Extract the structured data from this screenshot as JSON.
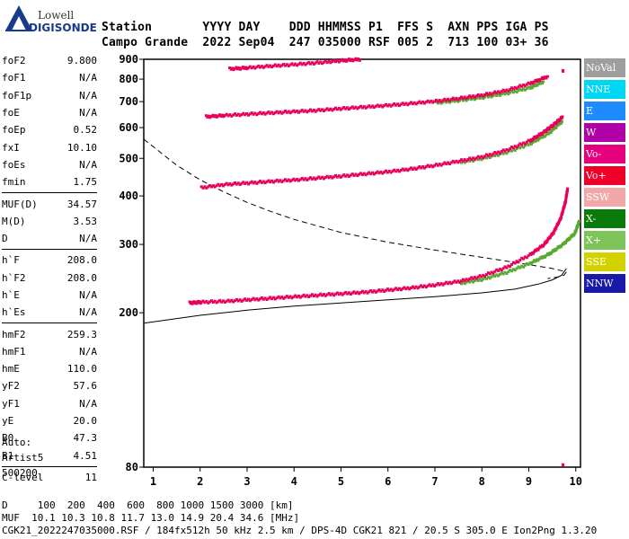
{
  "logo": {
    "line1": "Lowell",
    "line2": "DIGISONDE"
  },
  "header": {
    "row1": "Station       YYYY DAY    DDD HHMMSS P1  FFS S  AXN PPS IGA PS",
    "row2": "Campo Grande  2022 Sep04  247 035000 RSF 005 2  713 100 03+ 36"
  },
  "params": [
    {
      "name": "foF2",
      "value": "9.800"
    },
    {
      "name": "foF1",
      "value": "N/A"
    },
    {
      "name": "foF1p",
      "value": "N/A"
    },
    {
      "name": "foE",
      "value": "N/A"
    },
    {
      "name": "foEp",
      "value": "0.52"
    },
    {
      "name": "fxI",
      "value": "10.10"
    },
    {
      "name": "foEs",
      "value": "N/A"
    },
    {
      "name": "fmin",
      "value": "1.75"
    },
    {
      "sep": true
    },
    {
      "name": "MUF(D)",
      "value": "34.57"
    },
    {
      "name": "M(D)",
      "value": "3.53"
    },
    {
      "name": "D",
      "value": "N/A"
    },
    {
      "sep": true
    },
    {
      "name": "h`F",
      "value": "208.0"
    },
    {
      "name": "h`F2",
      "value": "208.0"
    },
    {
      "name": "h`E",
      "value": "N/A"
    },
    {
      "name": "h`Es",
      "value": "N/A"
    },
    {
      "sep": true
    },
    {
      "name": "hmF2",
      "value": "259.3"
    },
    {
      "name": "hmF1",
      "value": "N/A"
    },
    {
      "name": "hmE",
      "value": "110.0"
    },
    {
      "name": "yF2",
      "value": "57.6"
    },
    {
      "name": "yF1",
      "value": "N/A"
    },
    {
      "name": "yE",
      "value": "20.0"
    },
    {
      "name": "B0",
      "value": "47.3"
    },
    {
      "name": "B1",
      "value": "4.51"
    },
    {
      "sep": true
    },
    {
      "name": "C-level",
      "value": "11"
    }
  ],
  "auto": {
    "l1": "Auto:",
    "l2": "Artist5",
    "l3": "500200"
  },
  "legend": [
    {
      "label": "NoVal",
      "color": "#9e9e9e"
    },
    {
      "label": "NNE",
      "color": "#00d7f5"
    },
    {
      "label": "E",
      "color": "#1e8cff"
    },
    {
      "label": "W",
      "color": "#b000a8"
    },
    {
      "label": "Vo-",
      "color": "#e6007e"
    },
    {
      "label": "Vo+",
      "color": "#f00028"
    },
    {
      "label": "SSW",
      "color": "#f2a8a8"
    },
    {
      "label": "X-",
      "color": "#0a7a0a"
    },
    {
      "label": "X+",
      "color": "#7ec45a"
    },
    {
      "label": "SSE",
      "color": "#d2d200"
    },
    {
      "label": "NNW",
      "color": "#1a1aa8"
    }
  ],
  "bottom": {
    "l1": "D     100  200  400  600  800 1000 1500 3000 [km]",
    "l2": "MUF  10.1 10.3 10.8 11.7 13.0 14.9 20.4 34.6 [MHz]",
    "l3": "CGK21_2022247035000.RSF / 184fx512h 50 kHz 2.5 km / DPS-4D CGK21 821 / 20.5 S 305.0 E Ion2Png 1.3.20"
  },
  "chart_data": {
    "type": "scatter",
    "xlim": [
      0.8,
      10.1
    ],
    "ylim": [
      80,
      900
    ],
    "yscale": "log",
    "xticks": [
      1,
      2,
      3,
      4,
      5,
      6,
      7,
      8,
      9,
      10
    ],
    "yticks": [
      80,
      200,
      300,
      400,
      500,
      600,
      700,
      800,
      900
    ],
    "grid": false,
    "trace_color": "#e8005a",
    "xtrace_color": "#5aa832",
    "traces": [
      {
        "name": "F2 1st hop O",
        "x": [
          1.75,
          2.0,
          2.5,
          3.0,
          3.5,
          4.0,
          4.5,
          5.0,
          5.5,
          6.0,
          6.5,
          7.0,
          7.5,
          8.0,
          8.5,
          9.0,
          9.3,
          9.5,
          9.65,
          9.75,
          9.8
        ],
        "y": [
          212,
          213,
          214,
          216,
          218,
          220,
          222,
          224,
          226,
          229,
          232,
          236,
          241,
          249,
          262,
          282,
          300,
          322,
          350,
          385,
          420
        ]
      },
      {
        "name": "F2 2nd hop O",
        "x": [
          2.0,
          2.5,
          3.0,
          3.5,
          4.0,
          4.5,
          5.0,
          5.5,
          6.0,
          6.5,
          7.0,
          7.5,
          8.0,
          8.5,
          9.0,
          9.3,
          9.5,
          9.7
        ],
        "y": [
          420,
          428,
          432,
          436,
          440,
          445,
          450,
          456,
          462,
          470,
          480,
          492,
          505,
          525,
          555,
          585,
          610,
          640
        ]
      },
      {
        "name": "F2 3rd hop O",
        "x": [
          2.1,
          2.5,
          3.0,
          3.5,
          4.0,
          4.5,
          5.0,
          5.5,
          6.0,
          6.5,
          7.0,
          7.5,
          8.0,
          8.5,
          9.0,
          9.4
        ],
        "y": [
          640,
          645,
          650,
          655,
          660,
          665,
          672,
          678,
          685,
          693,
          702,
          714,
          728,
          748,
          780,
          815
        ]
      },
      {
        "name": "F2 4th hop O",
        "x": [
          2.6,
          3.0,
          3.5,
          4.0,
          4.5,
          5.0,
          5.4
        ],
        "y": [
          850,
          856,
          865,
          873,
          882,
          893,
          900
        ]
      }
    ],
    "x_traces": [
      {
        "name": "F2 1st hop X",
        "x": [
          7.5,
          8.0,
          8.5,
          9.0,
          9.4,
          9.7,
          9.95,
          10.05
        ],
        "y": [
          238,
          244,
          254,
          268,
          283,
          300,
          320,
          345
        ]
      },
      {
        "name": "F2 2nd hop X",
        "x": [
          7.5,
          8.0,
          8.5,
          9.0,
          9.4,
          9.7
        ],
        "y": [
          488,
          500,
          518,
          545,
          580,
          625
        ]
      },
      {
        "name": "F2 3rd hop X",
        "x": [
          7.0,
          7.5,
          8.0,
          8.5,
          9.0,
          9.3
        ],
        "y": [
          695,
          705,
          718,
          735,
          760,
          790
        ]
      }
    ],
    "profile": {
      "x": [
        0.8,
        2.0,
        3.0,
        4.0,
        5.0,
        6.0,
        7.0,
        8.0,
        8.7,
        9.2,
        9.5,
        9.7,
        9.8
      ],
      "y": [
        188,
        197,
        203,
        208,
        212,
        216,
        220,
        225,
        230,
        237,
        243,
        250,
        260
      ]
    },
    "muf_curve": {
      "x": [
        0.8,
        1.5,
        2.0,
        2.5,
        3.0,
        3.5,
        4.0,
        5.0,
        6.0,
        7.0,
        8.0,
        9.0,
        9.5,
        9.8,
        9.75,
        9.6,
        9.4
      ],
      "y": [
        560,
        480,
        440,
        410,
        385,
        365,
        348,
        322,
        304,
        290,
        278,
        266,
        260,
        255,
        250,
        247,
        245
      ]
    },
    "outliers": [
      {
        "x": 9.7,
        "y": 840
      },
      {
        "x": 9.7,
        "y": 81
      }
    ]
  }
}
